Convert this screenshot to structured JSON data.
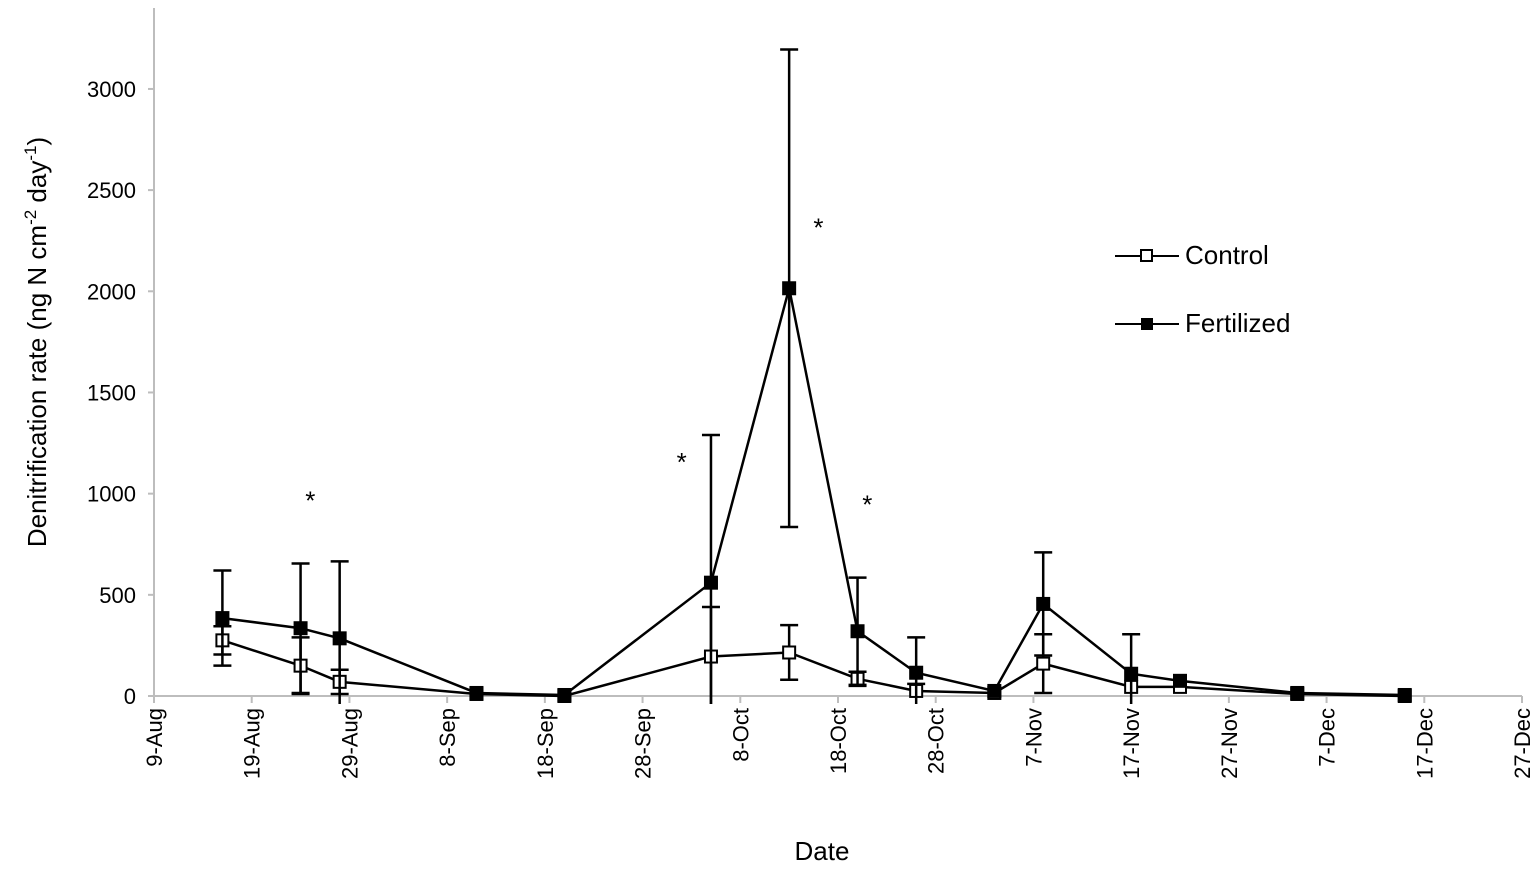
{
  "chart_data": {
    "type": "line",
    "title": "",
    "xlabel": "Date",
    "ylabel": "Denitrification rate (ng N cm-2 day-1)",
    "ylabel_parts": {
      "main": "Denitrification rate (ng N cm",
      "sup1": "-2",
      "mid": " day",
      "sup2": "-1",
      "end": ")"
    },
    "xlim": [
      "9-Aug",
      "27-Dec"
    ],
    "ylim": [
      0,
      3400
    ],
    "x_ticks": [
      "9-Aug",
      "19-Aug",
      "29-Aug",
      "8-Sep",
      "18-Sep",
      "28-Sep",
      "8-Oct",
      "18-Oct",
      "28-Oct",
      "7-Nov",
      "17-Nov",
      "27-Nov",
      "7-Dec",
      "17-Dec",
      "27-Dec"
    ],
    "y_ticks": [
      0,
      500,
      1000,
      1500,
      2000,
      2500,
      3000
    ],
    "grid": false,
    "legend_position": "right",
    "x": [
      "16-Aug",
      "24-Aug",
      "28-Aug",
      "11-Sep",
      "20-Sep",
      "5-Oct",
      "13-Oct",
      "20-Oct",
      "26-Oct",
      "3-Nov",
      "8-Nov",
      "17-Nov",
      "22-Nov",
      "4-Dec",
      "15-Dec"
    ],
    "series": [
      {
        "name": "Control",
        "marker": "open-square",
        "color": "#000000",
        "values": [
          275,
          150,
          70,
          10,
          0,
          195,
          215,
          85,
          25,
          15,
          160,
          45,
          45,
          10,
          0
        ],
        "error": [
          70,
          140,
          60,
          0,
          0,
          245,
          135,
          35,
          35,
          0,
          145,
          0,
          0,
          0,
          0
        ]
      },
      {
        "name": "Fertilized",
        "marker": "filled-square",
        "color": "#000000",
        "values": [
          385,
          335,
          285,
          15,
          5,
          560,
          2015,
          320,
          115,
          25,
          455,
          110,
          75,
          15,
          5
        ],
        "error": [
          235,
          320,
          380,
          0,
          0,
          730,
          1180,
          265,
          175,
          0,
          255,
          195,
          0,
          0,
          0
        ]
      }
    ],
    "annotations": [
      {
        "text": "*",
        "x": "25-Aug",
        "y": 980
      },
      {
        "text": "*",
        "x": "2-Oct",
        "y": 1170
      },
      {
        "text": "*",
        "x": "16-Oct",
        "y": 2330
      },
      {
        "text": "*",
        "x": "21-Oct",
        "y": 960
      }
    ]
  }
}
